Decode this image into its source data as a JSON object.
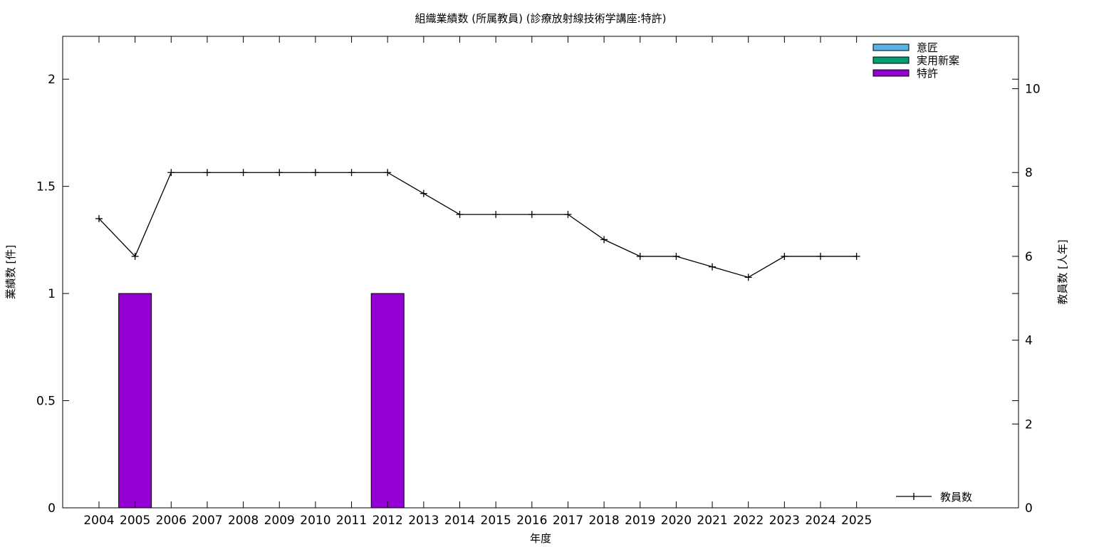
{
  "chart_data": {
    "type": "bar",
    "title": "組織業績数 (所属教員) (診療放射線技術学講座:特許)",
    "xlabel": "年度",
    "ylabel": "業績数 [件]",
    "y2label": "教員数 [人年]",
    "categories": [
      "2004",
      "2005",
      "2006",
      "2007",
      "2008",
      "2009",
      "2010",
      "2011",
      "2012",
      "2013",
      "2014",
      "2015",
      "2016",
      "2017",
      "2018",
      "2019",
      "2020",
      "2021",
      "2022",
      "2023",
      "2024",
      "2025"
    ],
    "ylim": [
      0,
      2.2
    ],
    "y2lim": [
      0,
      11.25
    ],
    "yticks": [
      0,
      0.5,
      1,
      1.5,
      2
    ],
    "ytick_labels": [
      "0",
      "0.5",
      "1",
      "1.5",
      "2"
    ],
    "y2ticks": [
      0,
      2,
      4,
      6,
      8,
      10
    ],
    "y2tick_labels": [
      "0",
      "2",
      "4",
      "6",
      "8",
      "10"
    ],
    "grid": false,
    "bar_series": [
      {
        "name": "意匠",
        "color": "#56b4e9",
        "values": [
          0,
          0,
          0,
          0,
          0,
          0,
          0,
          0,
          0,
          0,
          0,
          0,
          0,
          0,
          0,
          0,
          0,
          0,
          0,
          0,
          0,
          0
        ]
      },
      {
        "name": "実用新案",
        "color": "#009e73",
        "values": [
          0,
          0,
          0,
          0,
          0,
          0,
          0,
          0,
          0,
          0,
          0,
          0,
          0,
          0,
          0,
          0,
          0,
          0,
          0,
          0,
          0,
          0
        ]
      },
      {
        "name": "特許",
        "color": "#9400d3",
        "values": [
          0,
          1,
          0,
          0,
          0,
          0,
          0,
          0,
          1,
          0,
          0,
          0,
          0,
          0,
          0,
          0,
          0,
          0,
          0,
          0,
          0,
          0
        ]
      }
    ],
    "line_series": {
      "name": "教員数",
      "color": "#000000",
      "axis": "right",
      "values": [
        6.9,
        6.0,
        8.0,
        8.0,
        8.0,
        8.0,
        8.0,
        8.0,
        8.0,
        7.5,
        7.0,
        7.0,
        7.0,
        7.0,
        6.4,
        6.0,
        6.0,
        5.75,
        5.5,
        6.0,
        6.0,
        6.0
      ]
    },
    "legend_placement": "top-right"
  }
}
